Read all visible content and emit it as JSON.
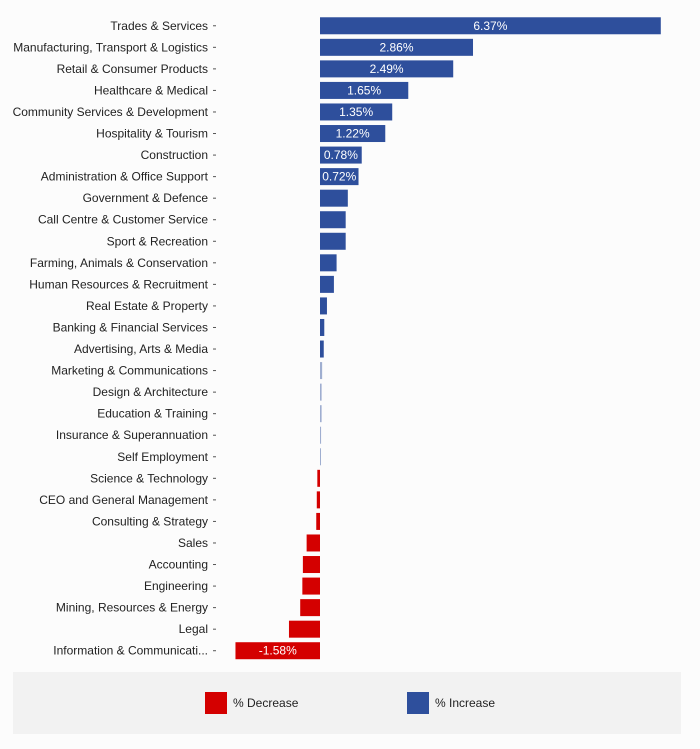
{
  "chart_data": {
    "type": "bar",
    "orientation": "horizontal",
    "categories": [
      "Trades & Services",
      "Manufacturing, Transport & Logistics",
      "Retail & Consumer Products",
      "Healthcare & Medical",
      "Community Services & Development",
      "Hospitality & Tourism",
      "Construction",
      "Administration & Office Support",
      "Government & Defence",
      "Call Centre & Customer Service",
      "Sport & Recreation",
      "Farming, Animals & Conservation",
      "Human Resources & Recruitment",
      "Real Estate & Property",
      "Banking & Financial Services",
      "Advertising, Arts & Media",
      "Marketing & Communications",
      "Design & Architecture",
      "Education & Training",
      "Insurance & Superannuation",
      "Self Employment",
      "Science & Technology",
      "CEO and General Management",
      "Consulting & Strategy",
      "Sales",
      "Accounting",
      "Engineering",
      "Mining, Resources & Energy",
      "Legal",
      "Information & Communicati..."
    ],
    "values": [
      6.37,
      2.86,
      2.49,
      1.65,
      1.35,
      1.22,
      0.78,
      0.72,
      0.52,
      0.48,
      0.48,
      0.31,
      0.26,
      0.13,
      0.08,
      0.07,
      0.04,
      0.03,
      0.03,
      0.02,
      0.01,
      -0.05,
      -0.06,
      -0.07,
      -0.25,
      -0.32,
      -0.33,
      -0.37,
      -0.58,
      -1.58
    ],
    "value_labels": [
      "6.37%",
      "2.86%",
      "2.49%",
      "1.65%",
      "1.35%",
      "1.22%",
      "0.78%",
      "0.72%",
      "",
      "",
      "",
      "",
      "",
      "",
      "",
      "",
      "",
      "",
      "",
      "",
      "",
      "",
      "",
      "",
      "",
      "",
      "",
      "",
      "",
      "-1.58%"
    ],
    "xlim": [
      -1.58,
      6.37
    ],
    "colors": {
      "increase": "#2e4f9c",
      "decrease": "#d40000"
    },
    "grid": false,
    "legend_position": "bottom"
  },
  "legend": {
    "decrease_label": "% Decrease",
    "increase_label": "% Increase",
    "decrease_color": "#d40000",
    "increase_color": "#2e4f9c"
  }
}
